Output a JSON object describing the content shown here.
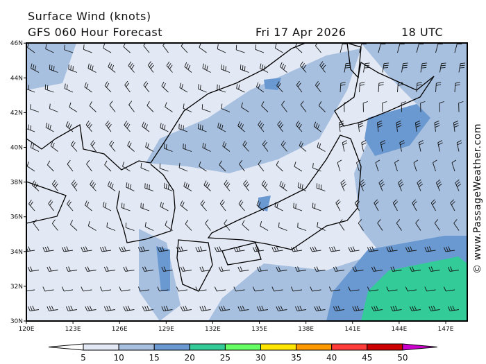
{
  "header": {
    "title": "Surface Wind (knots)",
    "model": "GFS 060 Hour Forecast",
    "date": "Fri 17 Apr 2026",
    "time": "18 UTC"
  },
  "map": {
    "lat_labels": [
      "30N",
      "32N",
      "34N",
      "36N",
      "38N",
      "40N",
      "42N",
      "44N",
      "46N"
    ],
    "lon_labels": [
      "120E",
      "123E",
      "126E",
      "129E",
      "132E",
      "135E",
      "138E",
      "141E",
      "144E",
      "147E"
    ],
    "extent": {
      "lon": [
        120,
        148.4
      ],
      "lat": [
        30,
        46
      ]
    }
  },
  "colorbar": {
    "labels": [
      "5",
      "10",
      "15",
      "20",
      "25",
      "30",
      "35",
      "40",
      "45",
      "50"
    ],
    "colors": [
      "#e2e8f4",
      "#a7c0e0",
      "#6a98d0",
      "#33cc99",
      "#66ff66",
      "#ffe600",
      "#ff9900",
      "#ff3c3c",
      "#cc0000",
      "#cc00cc"
    ],
    "unit": "knots"
  },
  "copyright": "© www.PassageWeather.com"
}
